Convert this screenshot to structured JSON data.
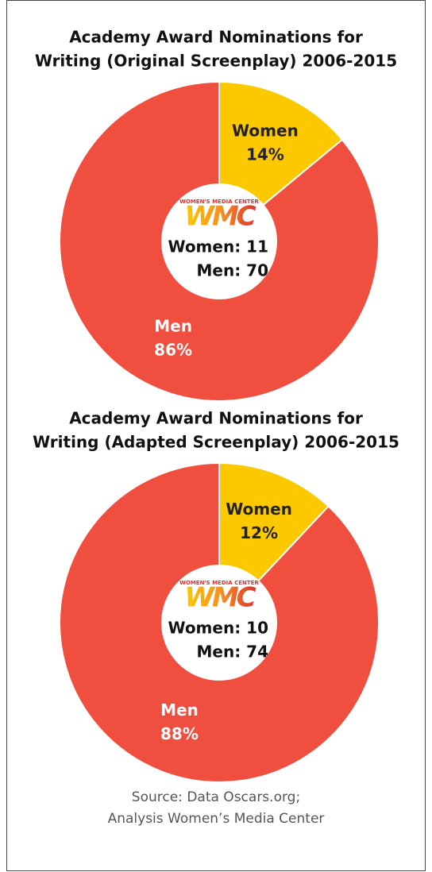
{
  "chart_data": [
    {
      "type": "donut",
      "title": [
        "Academy Award Nominations for",
        "Writing (Original Screenplay) 2006-2015"
      ],
      "categories": [
        "Women",
        "Men"
      ],
      "values": [
        14,
        86
      ],
      "value_labels": [
        "14%",
        "86%"
      ],
      "colors": [
        "#fcc800",
        "#f04e3e"
      ],
      "center_text": [
        "Women: 11",
        "Men: 70"
      ]
    },
    {
      "type": "donut",
      "title": [
        "Academy Award Nominations for",
        "Writing (Adapted Screenplay) 2006-2015"
      ],
      "categories": [
        "Women",
        "Men"
      ],
      "values": [
        12,
        88
      ],
      "value_labels": [
        "12%",
        "88%"
      ],
      "colors": [
        "#fcc800",
        "#f04e3e"
      ],
      "center_text": [
        "Women: 10",
        "Men: 74"
      ]
    }
  ],
  "logo": {
    "tagline": "WOMEN'S MEDIA CENTER",
    "mark": "WMC"
  },
  "source": [
    "Source: Data Oscars.org;",
    "Analysis Women’s Media Center"
  ]
}
